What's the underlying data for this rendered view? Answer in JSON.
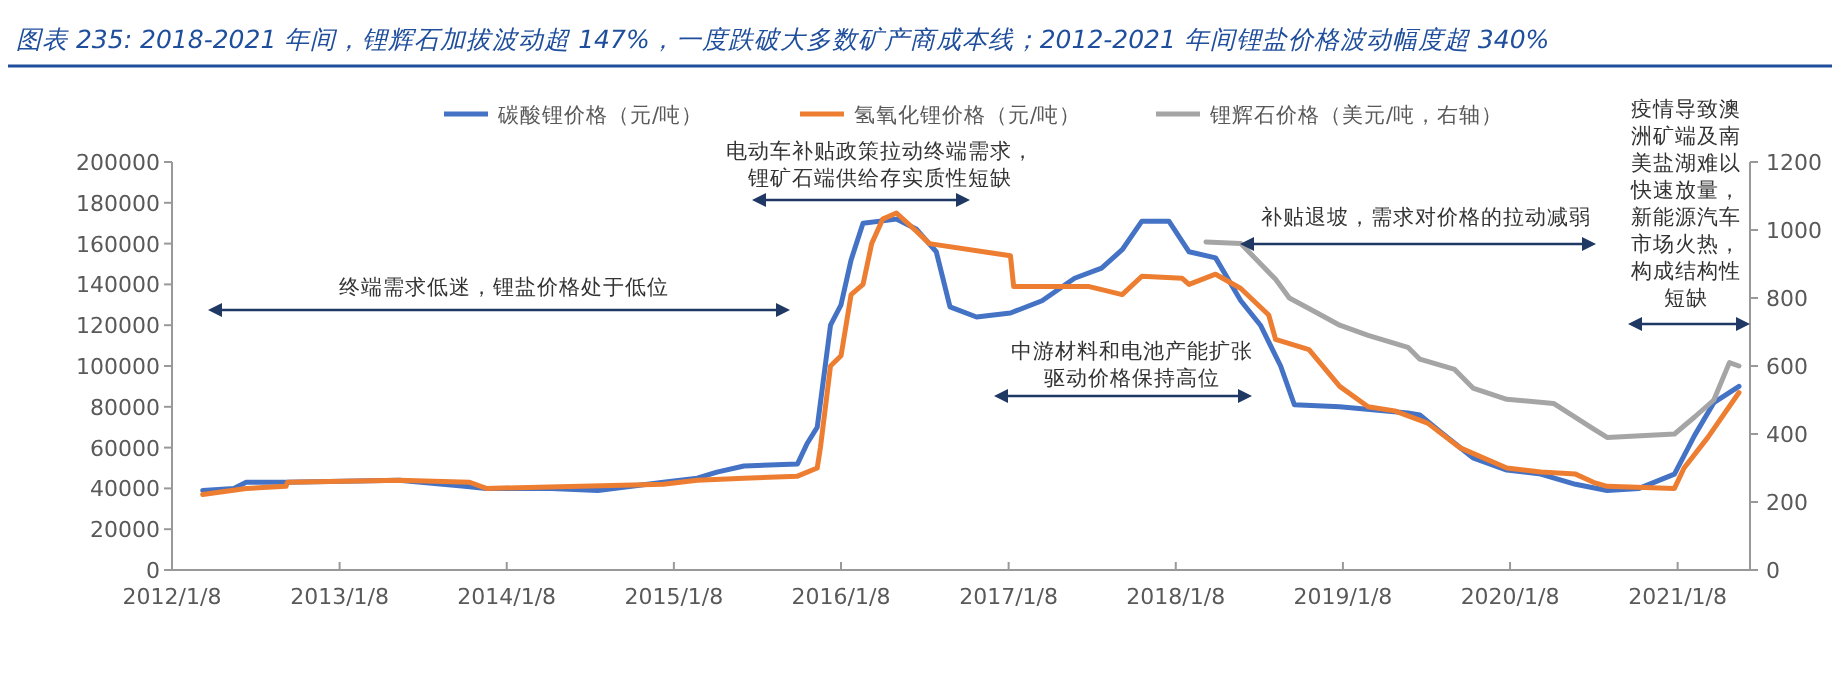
{
  "chart_data": {
    "type": "line",
    "title": "图表 235: 2018-2021 年间，锂辉石加拔波动超 147%，一度跌破大多数矿产商成本线；2012-2021 年间锂盐价格波动幅度超 340%",
    "xlim": [
      "2012-01-08",
      "2021-06-15"
    ],
    "xticks": [
      {
        "value": "2012-01-08",
        "label": "2012/1/8"
      },
      {
        "value": "2013-01-08",
        "label": "2013/1/8"
      },
      {
        "value": "2014-01-08",
        "label": "2014/1/8"
      },
      {
        "value": "2015-01-08",
        "label": "2015/1/8"
      },
      {
        "value": "2016-01-08",
        "label": "2016/1/8"
      },
      {
        "value": "2017-01-08",
        "label": "2017/1/8"
      },
      {
        "value": "2018-01-08",
        "label": "2018/1/8"
      },
      {
        "value": "2019-01-08",
        "label": "2019/1/8"
      },
      {
        "value": "2020-01-08",
        "label": "2020/1/8"
      },
      {
        "value": "2021-01-08",
        "label": "2021/1/8"
      }
    ],
    "ylim": [
      0,
      200000
    ],
    "yticks": [
      0,
      20000,
      40000,
      60000,
      80000,
      100000,
      120000,
      140000,
      160000,
      180000,
      200000
    ],
    "y2lim": [
      0,
      1200
    ],
    "y2ticks": [
      0,
      200,
      400,
      600,
      800,
      1000,
      1200
    ],
    "legend": "top",
    "grid": false,
    "series": [
      {
        "name": "碳酸锂价格（元/吨）",
        "color": "#4472c4",
        "x": [
          "2012-03-15",
          "2012-05-22",
          "2012-06-18",
          "2012-09-13",
          "2013-05-18",
          "2013-10-08",
          "2013-11-24",
          "2014-04-15",
          "2014-07-26",
          "2014-12-16",
          "2015-02-28",
          "2015-04-12",
          "2015-06-10",
          "2015-10-05",
          "2015-10-26",
          "2015-11-17",
          "2015-12-16",
          "2016-01-08",
          "2016-01-30",
          "2016-02-25",
          "2016-05-08",
          "2016-06-21",
          "2016-08-03",
          "2016-09-02",
          "2016-10-30",
          "2017-01-12",
          "2017-03-22",
          "2017-06-01",
          "2017-07-30",
          "2017-09-13",
          "2017-10-26",
          "2017-12-24",
          "2018-02-06",
          "2018-04-05",
          "2018-05-30",
          "2018-07-12",
          "2018-08-25",
          "2018-09-24",
          "2019-01-01",
          "2019-05-30",
          "2019-06-25",
          "2019-08-07",
          "2019-10-19",
          "2020-01-01",
          "2020-03-15",
          "2020-05-30",
          "2020-08-07",
          "2020-10-16",
          "2021-01-01",
          "2021-02-14",
          "2021-03-28",
          "2021-05-22"
        ],
        "values": [
          39000,
          40000,
          43000,
          43000,
          44000,
          41000,
          40000,
          40000,
          39000,
          43000,
          45000,
          48000,
          51000,
          52000,
          62000,
          70000,
          120000,
          130000,
          152000,
          170000,
          172000,
          167000,
          156000,
          129000,
          124000,
          126000,
          132000,
          143000,
          148000,
          157000,
          171000,
          171000,
          156000,
          153000,
          132000,
          120000,
          100000,
          81000,
          80000,
          77000,
          76000,
          68000,
          55000,
          49000,
          47000,
          42000,
          39000,
          40000,
          47000,
          66000,
          82000,
          90000
        ]
      },
      {
        "name": "氢氧化锂价格（元/吨）",
        "color": "#ed7d31",
        "x": [
          "2012-03-15",
          "2012-06-18",
          "2012-09-13",
          "2012-09-16",
          "2013-05-18",
          "2013-10-19",
          "2013-11-24",
          "2014-12-16",
          "2015-02-28",
          "2015-06-10",
          "2015-10-05",
          "2015-11-17",
          "2015-11-24",
          "2015-12-16",
          "2016-01-08",
          "2016-01-30",
          "2016-02-25",
          "2016-03-15",
          "2016-04-08",
          "2016-05-08",
          "2016-06-21",
          "2016-07-19",
          "2017-01-12",
          "2017-01-19",
          "2017-07-01",
          "2017-09-13",
          "2017-10-26",
          "2018-01-22",
          "2018-02-06",
          "2018-04-05",
          "2018-05-30",
          "2018-07-30",
          "2018-08-14",
          "2018-10-26",
          "2019-01-01",
          "2019-03-04",
          "2019-05-01",
          "2019-07-12",
          "2019-09-20",
          "2020-01-01",
          "2020-03-15",
          "2020-05-30",
          "2020-07-08",
          "2020-08-07",
          "2021-01-01",
          "2021-01-22",
          "2021-03-15",
          "2021-05-22"
        ],
        "values": [
          37000,
          40000,
          41000,
          43000,
          44000,
          43000,
          40000,
          42000,
          44000,
          45000,
          46000,
          50000,
          60000,
          100000,
          105000,
          135000,
          140000,
          160000,
          172000,
          175000,
          166000,
          160000,
          154000,
          139000,
          139000,
          135000,
          144000,
          143000,
          140000,
          145000,
          138000,
          125000,
          113000,
          108000,
          90000,
          80000,
          78000,
          72000,
          60000,
          50000,
          48000,
          47000,
          43000,
          41000,
          40000,
          50000,
          65000,
          87000
        ]
      },
      {
        "name": "锂辉石价格（美元/吨，右轴）",
        "color": "#a5a5a5",
        "axis": "y2",
        "x": [
          "2018-03-15",
          "2018-05-30",
          "2018-08-14",
          "2018-09-13",
          "2018-11-10",
          "2019-01-01",
          "2019-03-04",
          "2019-05-30",
          "2019-06-25",
          "2019-09-09",
          "2019-10-19",
          "2020-01-01",
          "2020-04-12",
          "2020-07-08",
          "2020-08-07",
          "2021-01-01",
          "2021-02-14",
          "2021-03-28",
          "2021-05-01",
          "2021-05-22"
        ],
        "values": [
          965,
          960,
          855,
          800,
          758,
          720,
          690,
          655,
          620,
          590,
          535,
          502,
          490,
          415,
          390,
          400,
          450,
          500,
          610,
          600
        ]
      }
    ],
    "annotations": [
      "终端需求低迷，锂盐价格处于低位",
      "电动车补贴政策拉动终端需求，锂矿石端供给存实质性短缺",
      "中游材料和电池产能扩张驱动价格保持高位",
      "补贴退坡，需求对价格的拉动减弱",
      "疫情导致澳洲矿端及南美盐湖难以快速放量，新能源汽车市场火热，构成结构性短缺"
    ]
  }
}
